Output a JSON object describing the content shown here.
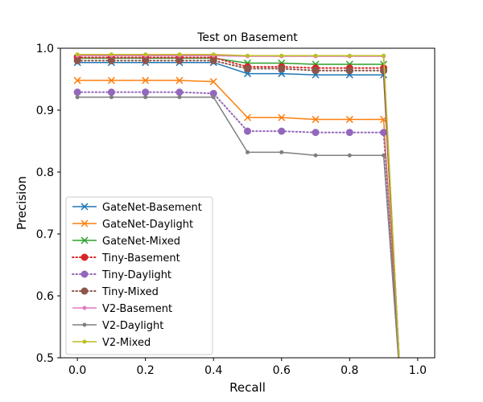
{
  "chart_data": {
    "type": "line",
    "title": "Test on Basement",
    "xlabel": "Recall",
    "ylabel": "Precision",
    "xlim": [
      -0.05,
      1.05
    ],
    "ylim": [
      0.5,
      1.0
    ],
    "xticks": [
      "0.0",
      "0.2",
      "0.4",
      "0.6",
      "0.8",
      "1.0"
    ],
    "yticks": [
      "0.5",
      "0.6",
      "0.7",
      "0.8",
      "0.9",
      "1.0"
    ],
    "grid": false,
    "legend_position": "lower-left",
    "series": [
      {
        "name": "GateNet-Basement",
        "color": "#1f77b4",
        "marker": "x",
        "style": "solid",
        "x": [
          0,
          0.1,
          0.2,
          0.3,
          0.4,
          0.5,
          0.6,
          0.7,
          0.8,
          0.9,
          0.95
        ],
        "y": [
          0.977,
          0.977,
          0.977,
          0.977,
          0.977,
          0.959,
          0.959,
          0.957,
          0.957,
          0.957,
          0.45
        ]
      },
      {
        "name": "GateNet-Daylight",
        "color": "#ff7f0e",
        "marker": "x",
        "style": "solid",
        "x": [
          0,
          0.1,
          0.2,
          0.3,
          0.4,
          0.5,
          0.6,
          0.7,
          0.8,
          0.9,
          0.95
        ],
        "y": [
          0.948,
          0.948,
          0.948,
          0.948,
          0.946,
          0.888,
          0.888,
          0.885,
          0.885,
          0.885,
          0.45
        ]
      },
      {
        "name": "GateNet-Mixed",
        "color": "#2ca02c",
        "marker": "x",
        "style": "solid",
        "x": [
          0,
          0.1,
          0.2,
          0.3,
          0.4,
          0.5,
          0.6,
          0.7,
          0.8,
          0.9,
          0.95
        ],
        "y": [
          0.984,
          0.984,
          0.984,
          0.984,
          0.984,
          0.976,
          0.976,
          0.974,
          0.974,
          0.974,
          0.45
        ]
      },
      {
        "name": "Tiny-Basement",
        "color": "#d62728",
        "marker": "o",
        "style": "dotted",
        "x": [
          0,
          0.1,
          0.2,
          0.3,
          0.4,
          0.5,
          0.6,
          0.7,
          0.8,
          0.9,
          0.95
        ],
        "y": [
          0.985,
          0.985,
          0.985,
          0.985,
          0.985,
          0.97,
          0.97,
          0.968,
          0.968,
          0.968,
          0.45
        ]
      },
      {
        "name": "Tiny-Daylight",
        "color": "#9467bd",
        "marker": "o",
        "style": "dotted",
        "x": [
          0,
          0.1,
          0.2,
          0.3,
          0.4,
          0.5,
          0.6,
          0.7,
          0.8,
          0.9,
          0.95
        ],
        "y": [
          0.929,
          0.929,
          0.929,
          0.929,
          0.927,
          0.866,
          0.866,
          0.864,
          0.864,
          0.864,
          0.45
        ]
      },
      {
        "name": "Tiny-Mixed",
        "color": "#8c564b",
        "marker": "o",
        "style": "dotted",
        "x": [
          0,
          0.1,
          0.2,
          0.3,
          0.4,
          0.5,
          0.6,
          0.7,
          0.8,
          0.9,
          0.95
        ],
        "y": [
          0.98,
          0.98,
          0.98,
          0.98,
          0.98,
          0.967,
          0.967,
          0.964,
          0.964,
          0.964,
          0.45
        ]
      },
      {
        "name": "V2-Basement",
        "color": "#e377c2",
        "marker": "dot",
        "style": "solid",
        "x": [
          0,
          0.1,
          0.2,
          0.3,
          0.4,
          0.5,
          0.6,
          0.7,
          0.8,
          0.9,
          0.95
        ],
        "y": [
          0.988,
          0.988,
          0.988,
          0.988,
          0.988,
          0.987,
          0.987,
          0.987,
          0.987,
          0.987,
          0.45
        ]
      },
      {
        "name": "V2-Daylight",
        "color": "#7f7f7f",
        "marker": "dot",
        "style": "solid",
        "x": [
          0,
          0.1,
          0.2,
          0.3,
          0.4,
          0.5,
          0.6,
          0.7,
          0.8,
          0.9,
          0.95
        ],
        "y": [
          0.921,
          0.921,
          0.921,
          0.921,
          0.921,
          0.832,
          0.832,
          0.827,
          0.827,
          0.827,
          0.45
        ]
      },
      {
        "name": "V2-Mixed",
        "color": "#bcbd22",
        "marker": "dot",
        "style": "solid",
        "x": [
          0,
          0.1,
          0.2,
          0.3,
          0.4,
          0.5,
          0.6,
          0.7,
          0.8,
          0.9,
          0.95
        ],
        "y": [
          0.99,
          0.99,
          0.99,
          0.99,
          0.99,
          0.988,
          0.988,
          0.988,
          0.988,
          0.988,
          0.45
        ]
      }
    ]
  }
}
